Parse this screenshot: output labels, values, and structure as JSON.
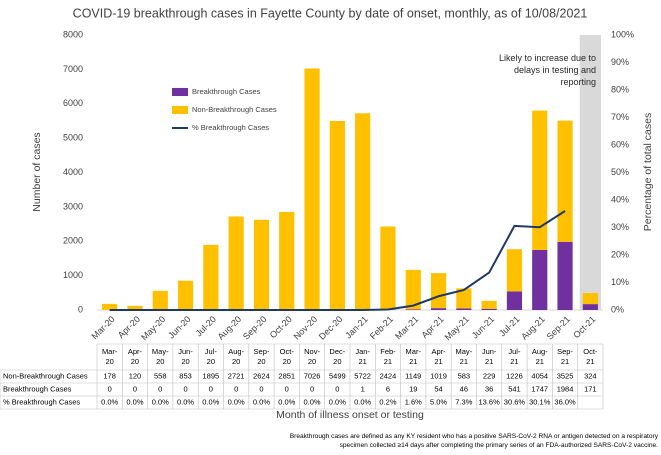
{
  "chart_data": {
    "type": "bar",
    "title": "COVID-19 breakthrough cases in Fayette County by date of onset, monthly, as of 10/08/2021",
    "y_label": "Number of cases",
    "y2_label": "Percentage of total cases",
    "x_label": "Month of illness onset or testing",
    "annotation": "Likely to increase due to delays in testing and reporting",
    "footnote": "Breakthrough cases are defined as any KY resident who has a positive SARS-CoV-2 RNA or antigen detected on a respiratory specimen collected ≥14 days after completing the primary series of an FDA-authorized SARS-CoV-2 vaccine.",
    "categories": [
      "Mar-20",
      "Apr-20",
      "May-20",
      "Jun-20",
      "Jul-20",
      "Aug-20",
      "Sep-20",
      "Oct-20",
      "Nov-20",
      "Dec-20",
      "Jan-21",
      "Feb-21",
      "Mar-21",
      "Apr-21",
      "May-21",
      "Jun-21",
      "Jul-21",
      "Aug-21",
      "Sep-21",
      "Oct-21"
    ],
    "series": [
      {
        "name": "Non-Breakthrough Cases",
        "color": "#ffc000",
        "values": [
          178,
          120,
          558,
          853,
          1895,
          2721,
          2624,
          2851,
          7026,
          5499,
          5722,
          2424,
          1149,
          1019,
          583,
          229,
          1226,
          4054,
          3525,
          324
        ]
      },
      {
        "name": "Breakthrough Cases",
        "color": "#7030a0",
        "values": [
          0,
          0,
          0,
          0,
          0,
          0,
          0,
          0,
          0,
          0,
          1,
          6,
          19,
          54,
          46,
          36,
          541,
          1747,
          1984,
          171
        ]
      },
      {
        "name": "% Breakthrough Cases",
        "color": "#1f3864",
        "axis": "y2",
        "type": "line",
        "values": [
          0.0,
          0.0,
          0.0,
          0.0,
          0.0,
          0.0,
          0.0,
          0.0,
          0.0,
          0.0,
          0.0,
          0.2,
          1.6,
          5.0,
          7.3,
          13.6,
          30.6,
          30.1,
          36.0,
          null
        ],
        "value_labels": [
          "0.0%",
          "0.0%",
          "0.0%",
          "0.0%",
          "0.0%",
          "0.0%",
          "0.0%",
          "0.0%",
          "0.0%",
          "0.0%",
          "0.0%",
          "0.2%",
          "1.6%",
          "5.0%",
          "7.3%",
          "13.6%",
          "30.6%",
          "30.1%",
          "36.0%",
          null
        ]
      }
    ],
    "ylim": [
      0,
      8000
    ],
    "yticks": [
      0,
      1000,
      2000,
      3000,
      4000,
      5000,
      6000,
      7000,
      8000
    ],
    "y2lim": [
      0,
      100
    ],
    "y2ticks": [
      {
        "value": 0,
        "label": "0%"
      },
      {
        "value": 10,
        "label": "10%"
      },
      {
        "value": 20,
        "label": "20%"
      },
      {
        "value": 30,
        "label": "30%"
      },
      {
        "value": 40,
        "label": "40%"
      },
      {
        "value": 50,
        "label": "50%"
      },
      {
        "value": 60,
        "label": "60%"
      },
      {
        "value": 70,
        "label": "70%"
      },
      {
        "value": 80,
        "label": "80%"
      },
      {
        "value": 90,
        "label": "90%"
      },
      {
        "value": 100,
        "label": "100%"
      }
    ],
    "grid": false
  }
}
